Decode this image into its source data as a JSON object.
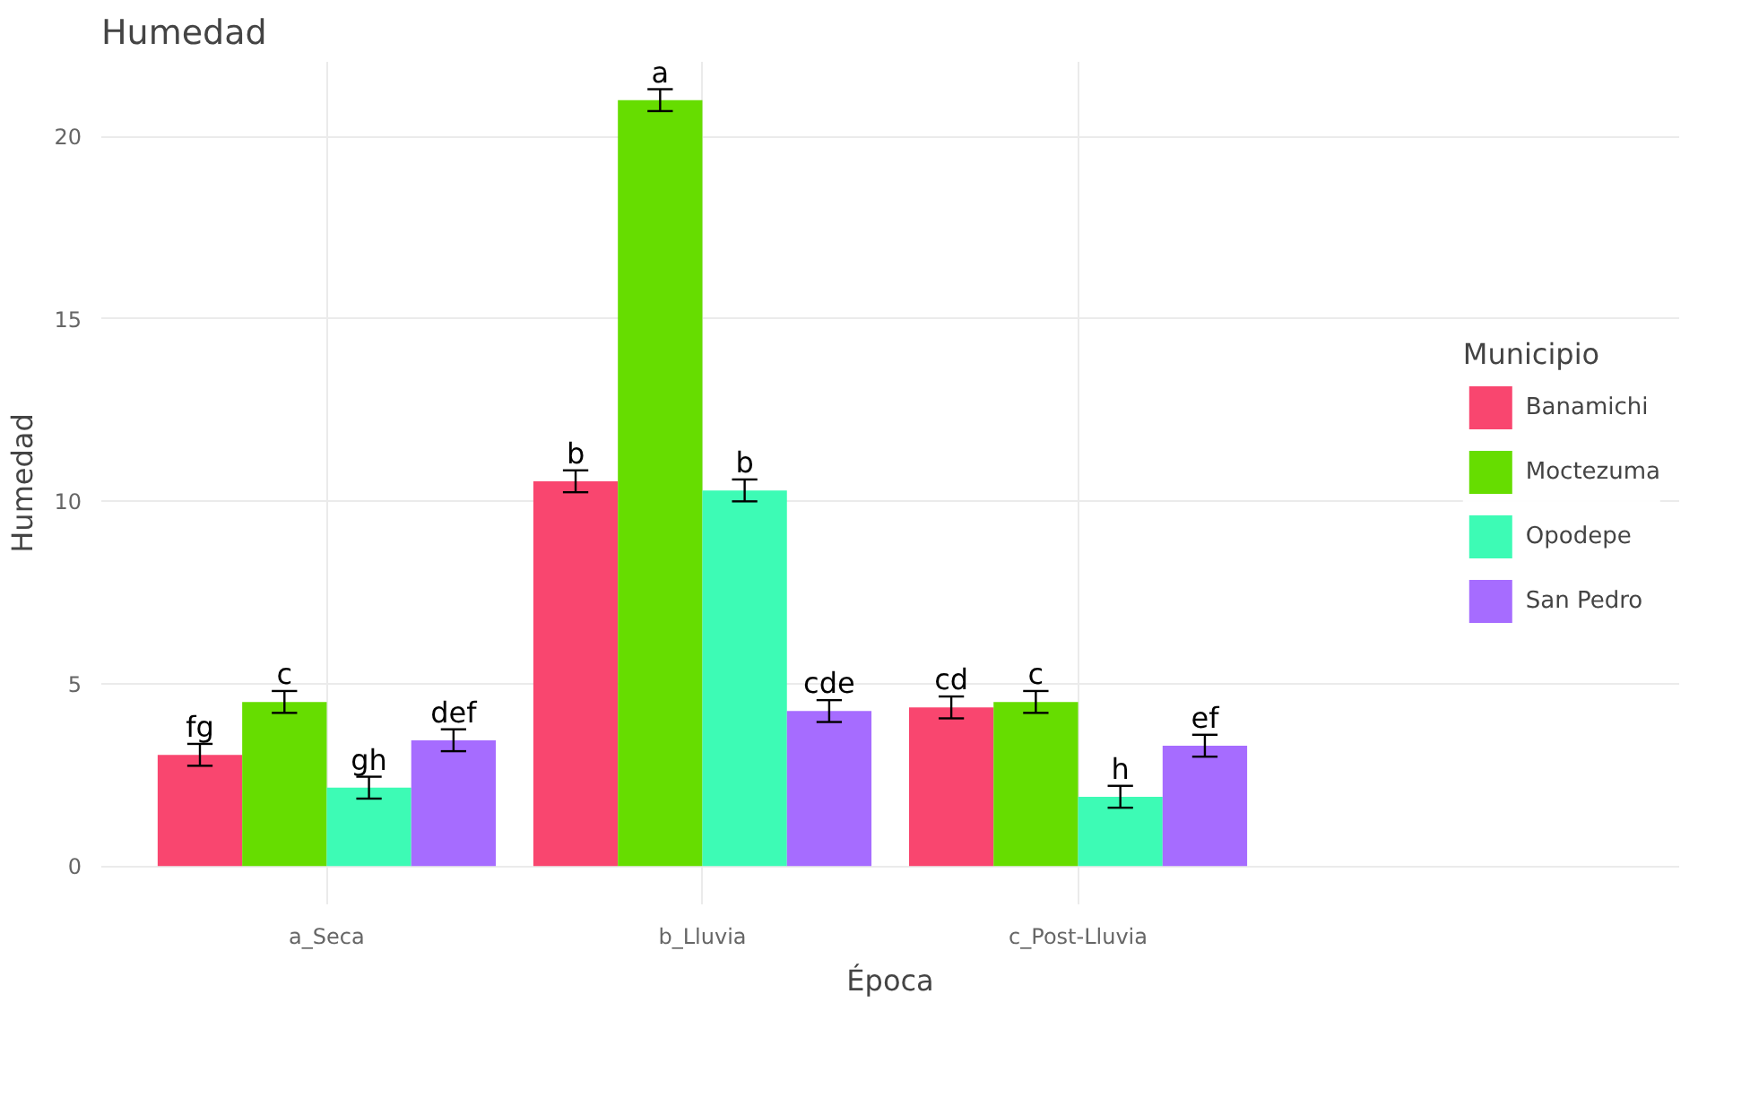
{
  "chart_data": {
    "type": "bar",
    "title": "Humedad",
    "xlabel": "Época",
    "ylabel": "Humedad",
    "legend_title": "Municipio",
    "categories": [
      "a_Seca",
      "b_Lluvia",
      "c_Post-Lluvia"
    ],
    "series": [
      {
        "name": "Banamichi",
        "color": "#f9466f",
        "values": [
          3.05,
          10.55,
          4.35
        ],
        "errors": [
          0.3,
          0.3,
          0.3
        ],
        "value_labels": [
          "fg",
          "b",
          "cd"
        ]
      },
      {
        "name": "Moctezuma",
        "color": "#66dd00",
        "values": [
          4.5,
          21.0,
          4.5
        ],
        "errors": [
          0.3,
          0.3,
          0.3
        ],
        "value_labels": [
          "c",
          "a",
          "c"
        ]
      },
      {
        "name": "Opodepe",
        "color": "#3dfbb5",
        "values": [
          2.15,
          10.3,
          1.9
        ],
        "errors": [
          0.3,
          0.3,
          0.3
        ],
        "value_labels": [
          "gh",
          "b",
          "h"
        ]
      },
      {
        "name": "San Pedro",
        "color": "#a66cff",
        "values": [
          3.45,
          4.25,
          3.3
        ],
        "errors": [
          0.3,
          0.3,
          0.3
        ],
        "value_labels": [
          "def",
          "cde",
          "ef"
        ]
      }
    ],
    "ylim": [
      -1.05,
      22.05
    ],
    "yticks": [
      0,
      5,
      10,
      15,
      20
    ],
    "grid": true,
    "legend": "right"
  }
}
